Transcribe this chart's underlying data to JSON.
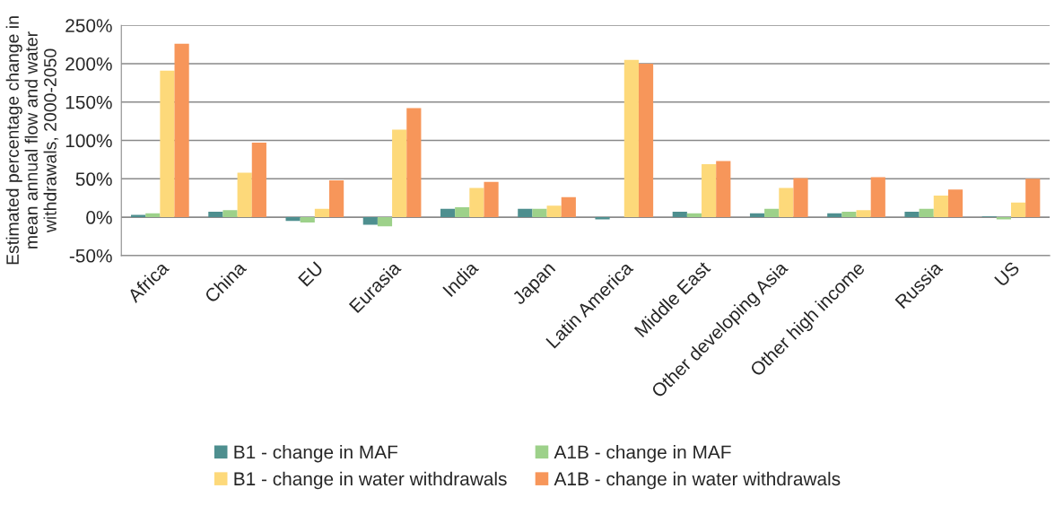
{
  "chart_data": {
    "type": "bar",
    "ylabel": "Estimated percentage change in mean annual flow and water withdrawals, 2000-2050",
    "categories": [
      "Africa",
      "China",
      "EU",
      "Eurasia",
      "India",
      "Japan",
      "Latin America",
      "Middle East",
      "Other developing Asia",
      "Other high income",
      "Russia",
      "US"
    ],
    "series": [
      {
        "name": "B1 - change in MAF",
        "color": "#4e8f8f",
        "values": [
          3,
          7,
          -5,
          -10,
          11,
          11,
          -3,
          7,
          5,
          5,
          7,
          1
        ]
      },
      {
        "name": "A1B - change in MAF",
        "color": "#9dd18a",
        "values": [
          5,
          9,
          -7,
          -12,
          13,
          11,
          null,
          5,
          11,
          7,
          11,
          -3
        ]
      },
      {
        "name": "B1 - change in water withdrawals",
        "color": "#fdd97a",
        "values": [
          191,
          58,
          11,
          114,
          38,
          15,
          205,
          69,
          38,
          9,
          28,
          19
        ]
      },
      {
        "name": "A1B - change in water withdrawals",
        "color": "#f7965a",
        "values": [
          226,
          97,
          48,
          142,
          46,
          26,
          200,
          73,
          51,
          52,
          36,
          50
        ]
      }
    ],
    "ylim": [
      -50,
      250
    ],
    "yticks": [
      {
        "value": -50,
        "label": "-50%"
      },
      {
        "value": 0,
        "label": "0%"
      },
      {
        "value": 50,
        "label": "50%"
      },
      {
        "value": 100,
        "label": "100%"
      },
      {
        "value": 150,
        "label": "150%"
      },
      {
        "value": 200,
        "label": "200%"
      },
      {
        "value": 250,
        "label": "250%"
      }
    ],
    "grid": "y",
    "legend": "bottom"
  }
}
